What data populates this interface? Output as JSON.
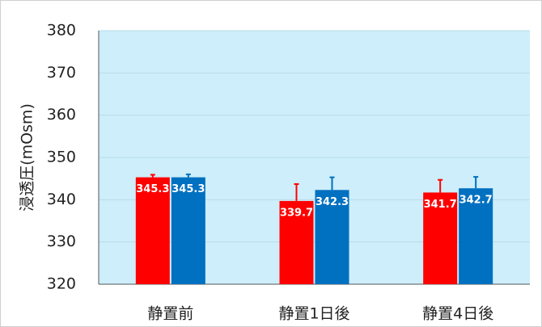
{
  "chart_data": {
    "type": "bar",
    "y_label": "浸透圧(mOsm)",
    "categories": [
      "静置前",
      "静置1日後",
      "静置4日後"
    ],
    "series": [
      {
        "color": "#ff0000",
        "values": [
          345.3,
          339.7,
          341.7
        ],
        "errors": [
          0.6,
          4.0,
          3.0
        ]
      },
      {
        "color": "#0070c0",
        "values": [
          345.3,
          342.3,
          342.7
        ],
        "errors": [
          0.7,
          3.0,
          2.7
        ]
      }
    ],
    "ylim": [
      320,
      380
    ],
    "yticks": [
      320,
      330,
      340,
      350,
      360,
      370,
      380
    ],
    "grid": true,
    "plot_background": "#cdeefa"
  }
}
